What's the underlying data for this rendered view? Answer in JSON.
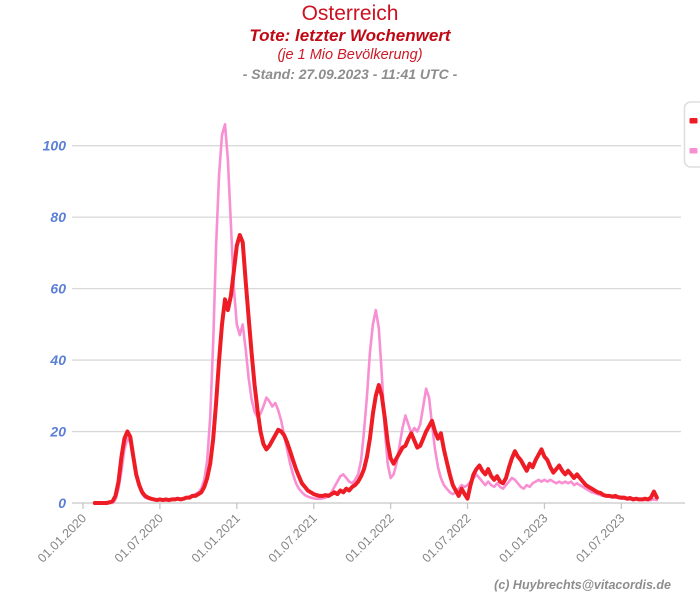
{
  "header": {
    "title": "Osterreich",
    "subtitle": "Tote: letzter Wochenwert",
    "subtitle2": "(je 1 Mio Bevölkerung)",
    "stand": "- Stand: 27.09.2023 - 11:41 UTC -"
  },
  "watermark": "(c) Huybrechts@vitacordis.de",
  "colors": {
    "title_red": "#cc1122",
    "subtitle_red": "#bf0a16",
    "stand_gray": "#8d8d8d",
    "y_label_blue": "#5b7fd6",
    "x_label_gray": "#858585",
    "grid": "#d9d9d9",
    "axis_line": "#c6c6c6",
    "series_red": "#ee1c25",
    "series_pink": "#f98fd3",
    "legend_border": "#dddddd",
    "legend_fill": "#ffffff"
  },
  "chart_data": {
    "type": "line",
    "title": "Osterreich",
    "subtitle": "Tote: letzter Wochenwert (je 1 Mio Bevölkerung)",
    "stand": "Stand: 27.09.2023 - 11:41 UTC",
    "grid": true,
    "legend_position": "right-edge-cut-off",
    "x_cadence": "weekly",
    "x_start_label": "01.01.2020",
    "x_tick_labels": [
      "01.01.2020",
      "01.07.2020",
      "01.01.2021",
      "01.07.2021",
      "01.01.2022",
      "01.07.2022",
      "01.01.2023",
      "01.07.2023"
    ],
    "y_ticks": [
      0,
      20,
      40,
      60,
      80,
      100
    ],
    "ylim": [
      0,
      112
    ],
    "legend_entries": [
      {
        "name": "red-series-marker",
        "color": "#ee1c25"
      },
      {
        "name": "pink-series-marker",
        "color": "#f98fd3"
      }
    ],
    "series": [
      {
        "name": "pink",
        "color": "#f98fd3",
        "width": 2.6,
        "values": [
          null,
          null,
          null,
          null,
          0,
          0,
          0,
          0,
          0,
          0,
          0,
          1,
          4,
          9,
          15,
          18,
          17,
          12,
          7.5,
          4.5,
          2.5,
          1.5,
          1.2,
          1,
          0.8,
          0.8,
          0.7,
          0.8,
          0.7,
          0.8,
          0.8,
          1,
          1,
          1.2,
          1.2,
          1.5,
          1.8,
          2,
          2.5,
          3,
          4,
          6.5,
          12,
          24,
          45,
          72,
          92,
          103,
          106,
          96,
          78,
          60,
          50,
          47,
          50,
          43,
          35,
          29,
          25.5,
          24,
          25,
          27,
          29.5,
          28.5,
          27,
          28,
          26,
          23,
          19,
          15,
          11,
          8,
          5.5,
          4,
          3,
          2.2,
          1.8,
          1.5,
          1.3,
          1.2,
          1.2,
          1.3,
          1.5,
          2,
          3,
          4.5,
          6,
          7.5,
          8,
          7,
          6,
          5.5,
          6.5,
          8,
          12,
          20,
          30,
          42,
          50,
          54,
          49,
          36,
          21,
          11,
          7,
          8,
          11,
          16,
          21,
          24.5,
          22,
          19.5,
          21,
          20,
          22,
          27,
          32,
          29.5,
          22,
          15,
          10,
          7,
          5,
          4,
          3,
          2.5,
          3,
          4,
          5,
          4.5,
          5,
          6,
          7,
          8,
          7,
          6,
          5,
          6,
          5,
          4.5,
          5.5,
          4.5,
          4,
          5,
          6,
          7,
          6.5,
          5.5,
          4.5,
          4,
          5,
          4.5,
          5.5,
          6,
          6.5,
          6,
          6.5,
          6,
          6.5,
          6,
          5.5,
          6,
          5.5,
          6,
          5.5,
          6,
          5,
          5.5,
          5,
          4.5,
          4,
          3.5,
          3,
          2.8,
          2.5,
          2.2,
          2,
          1.8,
          1.8,
          1.5,
          1.6,
          1.4,
          1.2,
          1.2,
          1,
          1,
          0.8,
          1,
          0.8,
          0.8,
          0.8,
          0.8,
          0.8,
          1,
          0.8
        ]
      },
      {
        "name": "red",
        "color": "#ee1c25",
        "width": 4,
        "values": [
          null,
          null,
          null,
          null,
          0,
          0,
          0,
          0,
          0,
          0.2,
          0.5,
          2,
          6,
          13,
          18,
          20,
          18.5,
          13,
          8,
          5,
          3,
          2,
          1.5,
          1.2,
          1,
          0.8,
          1,
          0.8,
          1,
          0.8,
          1,
          1,
          1.2,
          1,
          1.2,
          1.5,
          1.5,
          2,
          2,
          2.5,
          3,
          4.5,
          7,
          11,
          18,
          28,
          40,
          50,
          57,
          54,
          58,
          65,
          72,
          75,
          73,
          62,
          52,
          42,
          33,
          26,
          20,
          16.5,
          15,
          16,
          17.5,
          19,
          20.5,
          20,
          19,
          17,
          14.5,
          12,
          9.5,
          7.5,
          5.5,
          4.5,
          3.5,
          3,
          2.5,
          2.2,
          2,
          2,
          2.2,
          2,
          2.5,
          3,
          2.5,
          3.5,
          3,
          4,
          3.5,
          4.5,
          5,
          6,
          7.5,
          9.5,
          13,
          18,
          25,
          30,
          33,
          30,
          24,
          17,
          12.5,
          11,
          12.5,
          14,
          15.5,
          16,
          18,
          19.5,
          17.5,
          15.5,
          16,
          18,
          20,
          21.5,
          23,
          20,
          18,
          19.5,
          15,
          11.5,
          8,
          5,
          3.5,
          2,
          4,
          2.5,
          1.2,
          5,
          8,
          9.5,
          10.5,
          9,
          8,
          9.5,
          7.5,
          6.5,
          7.5,
          6,
          5.5,
          7,
          10,
          12.5,
          14.5,
          13,
          12,
          10.5,
          9,
          11,
          10,
          12,
          13.5,
          15,
          13,
          12,
          10,
          8.5,
          9.5,
          10.5,
          9,
          8,
          9,
          8,
          7,
          8,
          7,
          6,
          5,
          4.5,
          4,
          3.5,
          3,
          2.8,
          2.2,
          2,
          2,
          1.8,
          2,
          1.6,
          1.5,
          1.5,
          1.2,
          1.4,
          1,
          1.2,
          1,
          1,
          1.2,
          1,
          1.5,
          3.2,
          1.5
        ]
      }
    ]
  }
}
